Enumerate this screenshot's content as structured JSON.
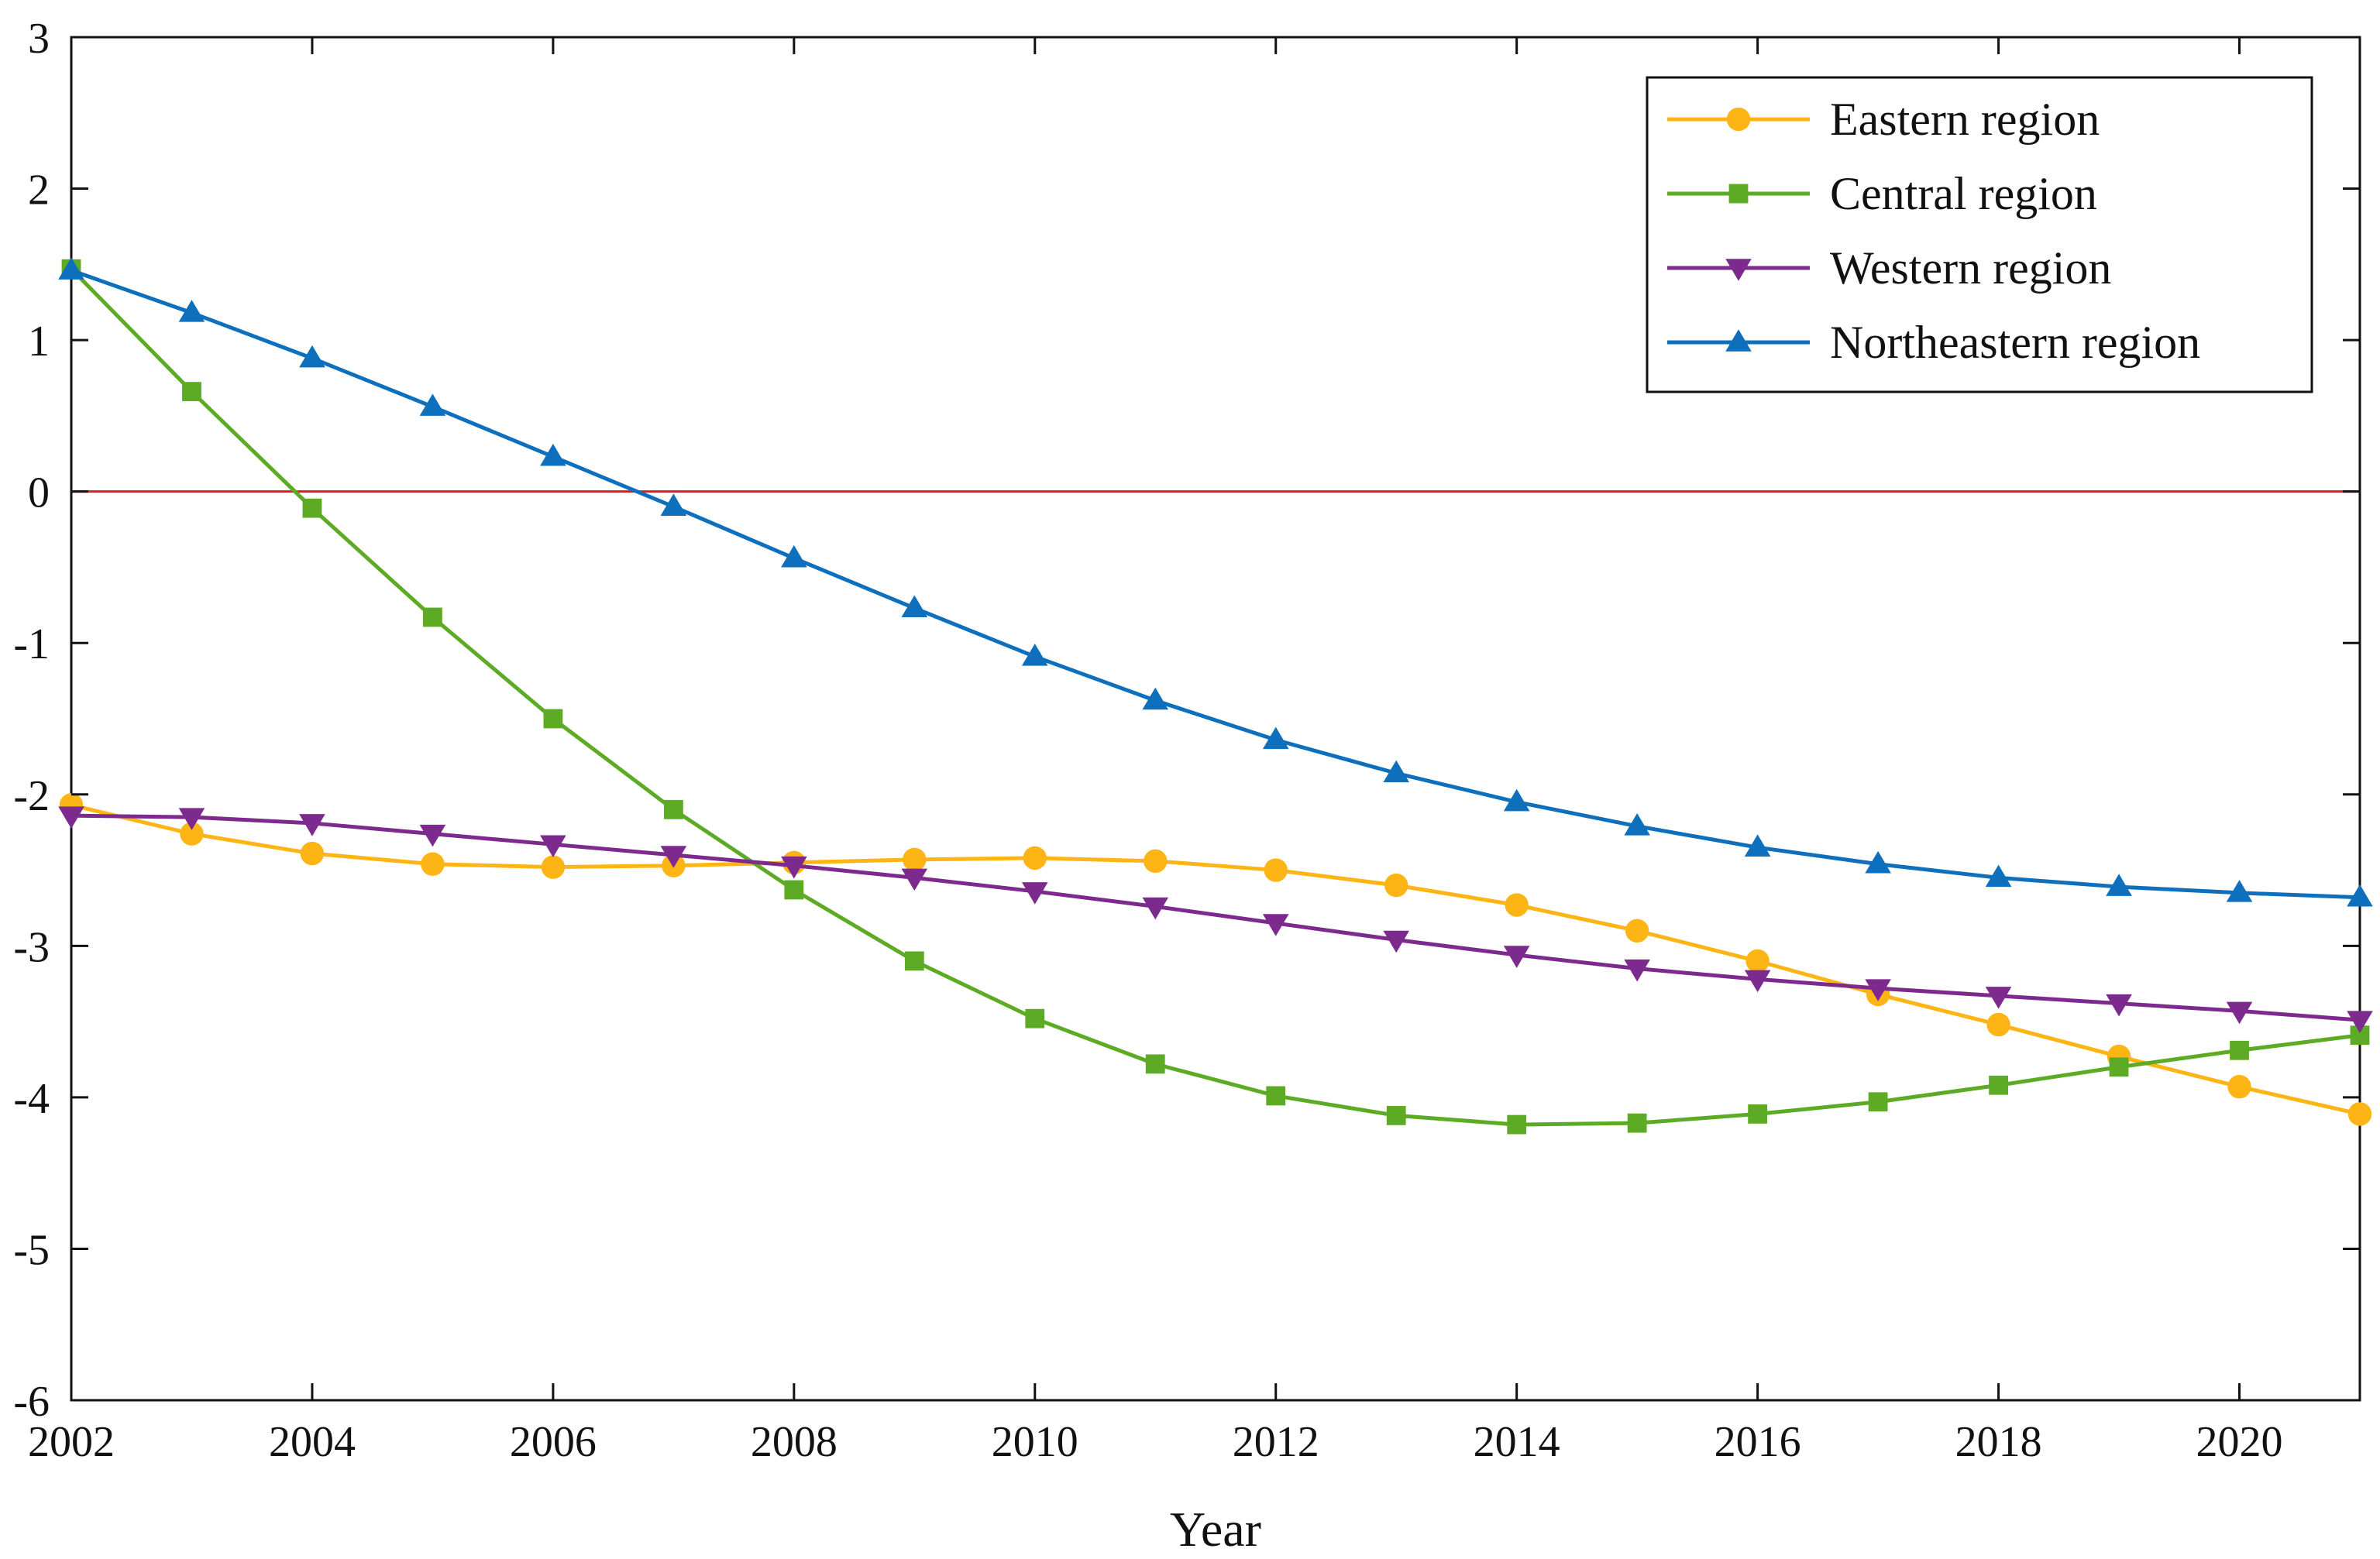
{
  "chart_data": {
    "type": "line",
    "title": "",
    "xlabel": "Year",
    "ylabel": "",
    "xlim": [
      2002,
      2021
    ],
    "ylim": [
      -6,
      3
    ],
    "x_ticks": [
      "2002",
      "2004",
      "2006",
      "2008",
      "2010",
      "2012",
      "2014",
      "2016",
      "2018",
      "2020"
    ],
    "y_ticks": [
      "3",
      "2",
      "1",
      "0",
      "-1",
      "-2",
      "-3",
      "-4",
      "-5",
      "-6"
    ],
    "grid": false,
    "legend_position": "top-right",
    "reference_line": {
      "y": 0,
      "color": "#e41a1c"
    },
    "x": [
      2002,
      2003,
      2004,
      2005,
      2006,
      2007,
      2008,
      2009,
      2010,
      2011,
      2012,
      2013,
      2014,
      2015,
      2016,
      2017,
      2018,
      2019,
      2020,
      2021
    ],
    "series": [
      {
        "name": "Eastern region",
        "color": "#FDB515",
        "marker": "circle",
        "values": [
          -2.07,
          -2.26,
          -2.39,
          -2.46,
          -2.48,
          -2.47,
          -2.45,
          -2.43,
          -2.42,
          -2.44,
          -2.5,
          -2.6,
          -2.73,
          -2.9,
          -3.1,
          -3.32,
          -3.52,
          -3.73,
          -3.93,
          -4.11
        ]
      },
      {
        "name": "Central region",
        "color": "#5DAA24",
        "marker": "square",
        "values": [
          1.47,
          0.66,
          -0.11,
          -0.83,
          -1.5,
          -2.1,
          -2.63,
          -3.1,
          -3.48,
          -3.78,
          -3.99,
          -4.12,
          -4.18,
          -4.17,
          -4.11,
          -4.03,
          -3.92,
          -3.8,
          -3.69,
          -3.59
        ]
      },
      {
        "name": "Western region",
        "color": "#7D2A8E",
        "marker": "triangle-down",
        "values": [
          -2.14,
          -2.15,
          -2.19,
          -2.26,
          -2.33,
          -2.4,
          -2.47,
          -2.55,
          -2.64,
          -2.74,
          -2.85,
          -2.96,
          -3.06,
          -3.15,
          -3.22,
          -3.28,
          -3.33,
          -3.38,
          -3.43,
          -3.49
        ]
      },
      {
        "name": "Northeastern region",
        "color": "#0E6FBD",
        "marker": "triangle-up",
        "values": [
          1.46,
          1.18,
          0.88,
          0.56,
          0.23,
          -0.1,
          -0.44,
          -0.77,
          -1.09,
          -1.38,
          -1.64,
          -1.86,
          -2.05,
          -2.21,
          -2.35,
          -2.46,
          -2.55,
          -2.61,
          -2.65,
          -2.68
        ]
      }
    ]
  }
}
